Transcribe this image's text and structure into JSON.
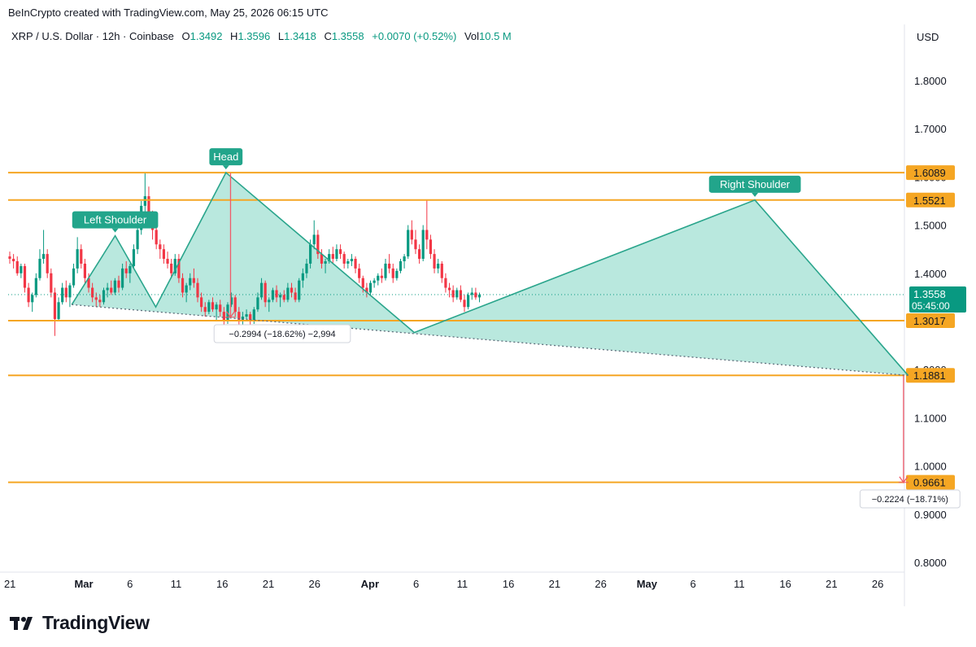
{
  "header": {
    "attribution": "BeInCrypto created with TradingView.com, May 25, 2026 06:15 UTC"
  },
  "symbol_bar": {
    "symbol": "XRP / U.S. Dollar · 12h · Coinbase",
    "open_label": "O",
    "open": "1.3492",
    "high_label": "H",
    "high": "1.3596",
    "low_label": "L",
    "low": "1.3418",
    "close_label": "C",
    "close": "1.3558",
    "change": "+0.0070 (+0.52%)",
    "vol_label": "Vol",
    "vol": "10.5 M"
  },
  "axis": {
    "currency": "USD"
  },
  "brand": {
    "name": "TradingView"
  },
  "colors": {
    "up": "#089981",
    "down": "#f23645",
    "level": "#f5a623",
    "pattern_fill": "#7fd6c2",
    "pattern_line": "#2aa58c",
    "badge": "#22a58b"
  },
  "chart_data": {
    "type": "candlestick",
    "price_axis": {
      "range": [
        0.77,
        1.88
      ],
      "ticks": [
        "1.8000",
        "1.7000",
        "1.6000",
        "1.5000",
        "1.4000",
        "1.3000",
        "1.2000",
        "1.1000",
        "1.0000",
        "0.9000",
        "0.8000"
      ]
    },
    "time_axis": {
      "ticks": [
        {
          "label": "21",
          "day": -8,
          "bold": false
        },
        {
          "label": "Mar",
          "day": 0,
          "bold": true
        },
        {
          "label": "6",
          "day": 5,
          "bold": false
        },
        {
          "label": "11",
          "day": 10,
          "bold": false
        },
        {
          "label": "16",
          "day": 15,
          "bold": false
        },
        {
          "label": "21",
          "day": 20,
          "bold": false
        },
        {
          "label": "26",
          "day": 25,
          "bold": false
        },
        {
          "label": "Apr",
          "day": 31,
          "bold": true
        },
        {
          "label": "6",
          "day": 36,
          "bold": false
        },
        {
          "label": "11",
          "day": 41,
          "bold": false
        },
        {
          "label": "16",
          "day": 46,
          "bold": false
        },
        {
          "label": "21",
          "day": 51,
          "bold": false
        },
        {
          "label": "26",
          "day": 56,
          "bold": false
        },
        {
          "label": "May",
          "day": 61,
          "bold": true
        },
        {
          "label": "6",
          "day": 66,
          "bold": false
        },
        {
          "label": "11",
          "day": 71,
          "bold": false
        },
        {
          "label": "16",
          "day": 76,
          "bold": false
        },
        {
          "label": "21",
          "day": 81,
          "bold": false
        },
        {
          "label": "26",
          "day": 86,
          "bold": false
        }
      ]
    },
    "levels": [
      {
        "value": 1.6089,
        "label": "1.6089"
      },
      {
        "value": 1.5521,
        "label": "1.5521"
      },
      {
        "value": 1.3017,
        "label": "1.3017"
      },
      {
        "value": 1.1881,
        "label": "1.1881"
      },
      {
        "value": 0.9661,
        "label": "0.9661"
      }
    ],
    "last_price": {
      "value": 1.3558,
      "label": "1.3558",
      "countdown": "05:45:00"
    },
    "pattern": {
      "points": [
        {
          "day": -1.3,
          "price": 1.335
        },
        {
          "day": 3.4,
          "price": 1.478
        },
        {
          "day": 7.8,
          "price": 1.33
        },
        {
          "day": 15.4,
          "price": 1.609
        },
        {
          "day": 35.8,
          "price": 1.277
        },
        {
          "day": 72.7,
          "price": 1.552
        },
        {
          "day": 89.3,
          "price": 1.188
        }
      ],
      "neckline": [
        {
          "day": -1.3,
          "price": 1.335
        },
        {
          "day": 89.3,
          "price": 1.188
        }
      ],
      "labels": [
        {
          "text": "Left Shoulder",
          "day": 3.4,
          "price": 1.478
        },
        {
          "text": "Head",
          "day": 15.4,
          "price": 1.609
        },
        {
          "text": "Right Shoulder",
          "day": 72.7,
          "price": 1.552
        }
      ]
    },
    "measures": [
      {
        "text": "−0.2994 (−18.62%) −2,994",
        "from_day": 15.9,
        "from_price": 1.608,
        "to_price": 1.309,
        "box_day": 21.5,
        "box_price": 1.273
      },
      {
        "text": "−0.2224 (−18.71%)",
        "from_day": 88.8,
        "from_price": 1.188,
        "to_price": 0.966,
        "box_day": 89.5,
        "box_price": 0.93
      }
    ],
    "candles_ohlc": [
      [
        1.435,
        1.445,
        1.42,
        1.43
      ],
      [
        1.43,
        1.44,
        1.41,
        1.425
      ],
      [
        1.425,
        1.435,
        1.395,
        1.4
      ],
      [
        1.4,
        1.42,
        1.39,
        1.415
      ],
      [
        1.415,
        1.42,
        1.36,
        1.37
      ],
      [
        1.37,
        1.38,
        1.33,
        1.34
      ],
      [
        1.34,
        1.36,
        1.32,
        1.355
      ],
      [
        1.355,
        1.4,
        1.35,
        1.39
      ],
      [
        1.39,
        1.45,
        1.385,
        1.43
      ],
      [
        1.43,
        1.49,
        1.42,
        1.44
      ],
      [
        1.44,
        1.45,
        1.39,
        1.4
      ],
      [
        1.4,
        1.41,
        1.35,
        1.36
      ],
      [
        1.36,
        1.37,
        1.27,
        1.305
      ],
      [
        1.305,
        1.35,
        1.3,
        1.34
      ],
      [
        1.34,
        1.38,
        1.335,
        1.37
      ],
      [
        1.37,
        1.385,
        1.34,
        1.35
      ],
      [
        1.35,
        1.38,
        1.33,
        1.375
      ],
      [
        1.375,
        1.42,
        1.37,
        1.41
      ],
      [
        1.41,
        1.475,
        1.4,
        1.45
      ],
      [
        1.45,
        1.46,
        1.41,
        1.42
      ],
      [
        1.42,
        1.43,
        1.38,
        1.39
      ],
      [
        1.39,
        1.4,
        1.36,
        1.37
      ],
      [
        1.37,
        1.38,
        1.34,
        1.35
      ],
      [
        1.35,
        1.36,
        1.33,
        1.345
      ],
      [
        1.345,
        1.355,
        1.33,
        1.34
      ],
      [
        1.34,
        1.37,
        1.335,
        1.365
      ],
      [
        1.365,
        1.38,
        1.35,
        1.37
      ],
      [
        1.37,
        1.385,
        1.355,
        1.36
      ],
      [
        1.36,
        1.39,
        1.355,
        1.385
      ],
      [
        1.385,
        1.395,
        1.36,
        1.37
      ],
      [
        1.37,
        1.42,
        1.365,
        1.41
      ],
      [
        1.41,
        1.425,
        1.39,
        1.4
      ],
      [
        1.4,
        1.42,
        1.38,
        1.415
      ],
      [
        1.415,
        1.46,
        1.41,
        1.45
      ],
      [
        1.45,
        1.5,
        1.44,
        1.49
      ],
      [
        1.49,
        1.55,
        1.48,
        1.54
      ],
      [
        1.54,
        1.609,
        1.52,
        1.56
      ],
      [
        1.56,
        1.58,
        1.5,
        1.51
      ],
      [
        1.51,
        1.53,
        1.47,
        1.49
      ],
      [
        1.49,
        1.5,
        1.45,
        1.46
      ],
      [
        1.46,
        1.47,
        1.43,
        1.45
      ],
      [
        1.45,
        1.46,
        1.42,
        1.43
      ],
      [
        1.43,
        1.445,
        1.41,
        1.42
      ],
      [
        1.42,
        1.43,
        1.39,
        1.4
      ],
      [
        1.4,
        1.44,
        1.395,
        1.43
      ],
      [
        1.43,
        1.44,
        1.38,
        1.39
      ],
      [
        1.39,
        1.4,
        1.35,
        1.36
      ],
      [
        1.36,
        1.38,
        1.34,
        1.375
      ],
      [
        1.375,
        1.4,
        1.365,
        1.39
      ],
      [
        1.39,
        1.41,
        1.37,
        1.38
      ],
      [
        1.38,
        1.39,
        1.34,
        1.35
      ],
      [
        1.35,
        1.36,
        1.32,
        1.33
      ],
      [
        1.33,
        1.34,
        1.31,
        1.32
      ],
      [
        1.32,
        1.345,
        1.315,
        1.34
      ],
      [
        1.34,
        1.35,
        1.32,
        1.325
      ],
      [
        1.325,
        1.34,
        1.3,
        1.335
      ],
      [
        1.335,
        1.345,
        1.31,
        1.32
      ],
      [
        1.32,
        1.33,
        1.29,
        1.3
      ],
      [
        1.3,
        1.34,
        1.295,
        1.335
      ],
      [
        1.335,
        1.36,
        1.33,
        1.35
      ],
      [
        1.35,
        1.355,
        1.31,
        1.32
      ],
      [
        1.32,
        1.33,
        1.29,
        1.3
      ],
      [
        1.3,
        1.32,
        1.29,
        1.31
      ],
      [
        1.31,
        1.325,
        1.3,
        1.315
      ],
      [
        1.315,
        1.32,
        1.28,
        1.3
      ],
      [
        1.3,
        1.33,
        1.295,
        1.325
      ],
      [
        1.325,
        1.36,
        1.32,
        1.35
      ],
      [
        1.35,
        1.39,
        1.345,
        1.38
      ],
      [
        1.38,
        1.385,
        1.33,
        1.34
      ],
      [
        1.34,
        1.35,
        1.32,
        1.345
      ],
      [
        1.345,
        1.37,
        1.34,
        1.365
      ],
      [
        1.365,
        1.375,
        1.34,
        1.35
      ],
      [
        1.35,
        1.36,
        1.33,
        1.355
      ],
      [
        1.355,
        1.365,
        1.34,
        1.345
      ],
      [
        1.345,
        1.38,
        1.34,
        1.37
      ],
      [
        1.37,
        1.38,
        1.35,
        1.36
      ],
      [
        1.36,
        1.37,
        1.34,
        1.345
      ],
      [
        1.345,
        1.39,
        1.34,
        1.385
      ],
      [
        1.385,
        1.41,
        1.37,
        1.4
      ],
      [
        1.4,
        1.43,
        1.39,
        1.42
      ],
      [
        1.42,
        1.47,
        1.41,
        1.46
      ],
      [
        1.46,
        1.51,
        1.45,
        1.48
      ],
      [
        1.48,
        1.49,
        1.43,
        1.44
      ],
      [
        1.44,
        1.45,
        1.41,
        1.42
      ],
      [
        1.42,
        1.43,
        1.4,
        1.425
      ],
      [
        1.425,
        1.45,
        1.42,
        1.44
      ],
      [
        1.44,
        1.455,
        1.42,
        1.43
      ],
      [
        1.43,
        1.46,
        1.425,
        1.45
      ],
      [
        1.45,
        1.46,
        1.43,
        1.44
      ],
      [
        1.44,
        1.445,
        1.41,
        1.42
      ],
      [
        1.42,
        1.43,
        1.41,
        1.425
      ],
      [
        1.425,
        1.44,
        1.415,
        1.43
      ],
      [
        1.43,
        1.435,
        1.4,
        1.41
      ],
      [
        1.41,
        1.42,
        1.38,
        1.39
      ],
      [
        1.39,
        1.395,
        1.36,
        1.37
      ],
      [
        1.37,
        1.38,
        1.35,
        1.36
      ],
      [
        1.36,
        1.385,
        1.355,
        1.38
      ],
      [
        1.38,
        1.39,
        1.37,
        1.385
      ],
      [
        1.385,
        1.4,
        1.375,
        1.395
      ],
      [
        1.395,
        1.41,
        1.38,
        1.39
      ],
      [
        1.39,
        1.43,
        1.385,
        1.42
      ],
      [
        1.42,
        1.44,
        1.4,
        1.41
      ],
      [
        1.41,
        1.42,
        1.38,
        1.39
      ],
      [
        1.39,
        1.41,
        1.385,
        1.405
      ],
      [
        1.405,
        1.43,
        1.4,
        1.425
      ],
      [
        1.425,
        1.44,
        1.41,
        1.435
      ],
      [
        1.435,
        1.5,
        1.43,
        1.49
      ],
      [
        1.49,
        1.51,
        1.46,
        1.47
      ],
      [
        1.47,
        1.49,
        1.44,
        1.45
      ],
      [
        1.45,
        1.46,
        1.42,
        1.43
      ],
      [
        1.43,
        1.5,
        1.425,
        1.49
      ],
      [
        1.49,
        1.552,
        1.45,
        1.47
      ],
      [
        1.47,
        1.48,
        1.43,
        1.44
      ],
      [
        1.44,
        1.45,
        1.4,
        1.41
      ],
      [
        1.41,
        1.43,
        1.4,
        1.42
      ],
      [
        1.42,
        1.425,
        1.38,
        1.39
      ],
      [
        1.39,
        1.4,
        1.36,
        1.37
      ],
      [
        1.37,
        1.38,
        1.35,
        1.365
      ],
      [
        1.365,
        1.375,
        1.34,
        1.35
      ],
      [
        1.35,
        1.37,
        1.345,
        1.365
      ],
      [
        1.365,
        1.375,
        1.34,
        1.345
      ],
      [
        1.345,
        1.355,
        1.32,
        1.33
      ],
      [
        1.33,
        1.36,
        1.325,
        1.355
      ],
      [
        1.355,
        1.37,
        1.345,
        1.36
      ],
      [
        1.36,
        1.37,
        1.345,
        1.35
      ],
      [
        1.35,
        1.36,
        1.34,
        1.3558
      ]
    ]
  }
}
